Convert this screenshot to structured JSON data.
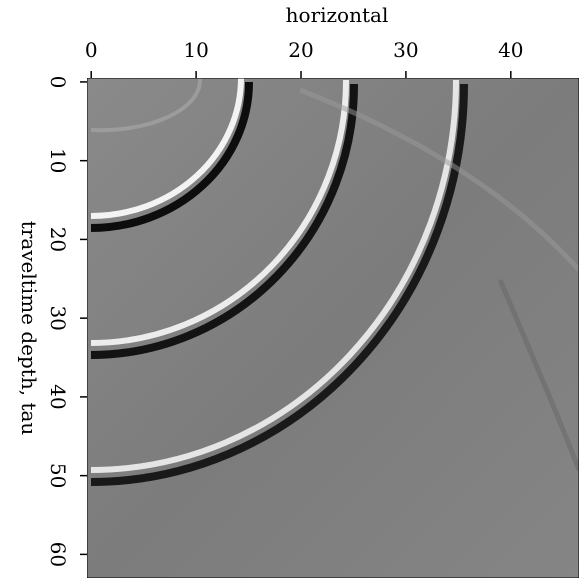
{
  "chart_data": {
    "type": "image",
    "xlabel": "horizontal",
    "ylabel": "traveltime depth, tau",
    "xlim": [
      -0.4,
      46.5
    ],
    "ylim": [
      -0.5,
      63
    ],
    "xticks": [
      0,
      10,
      20,
      30,
      40
    ],
    "yticks": [
      0,
      10,
      20,
      30,
      40,
      50,
      60
    ],
    "colormap": "gray",
    "y_inverted": true
  }
}
